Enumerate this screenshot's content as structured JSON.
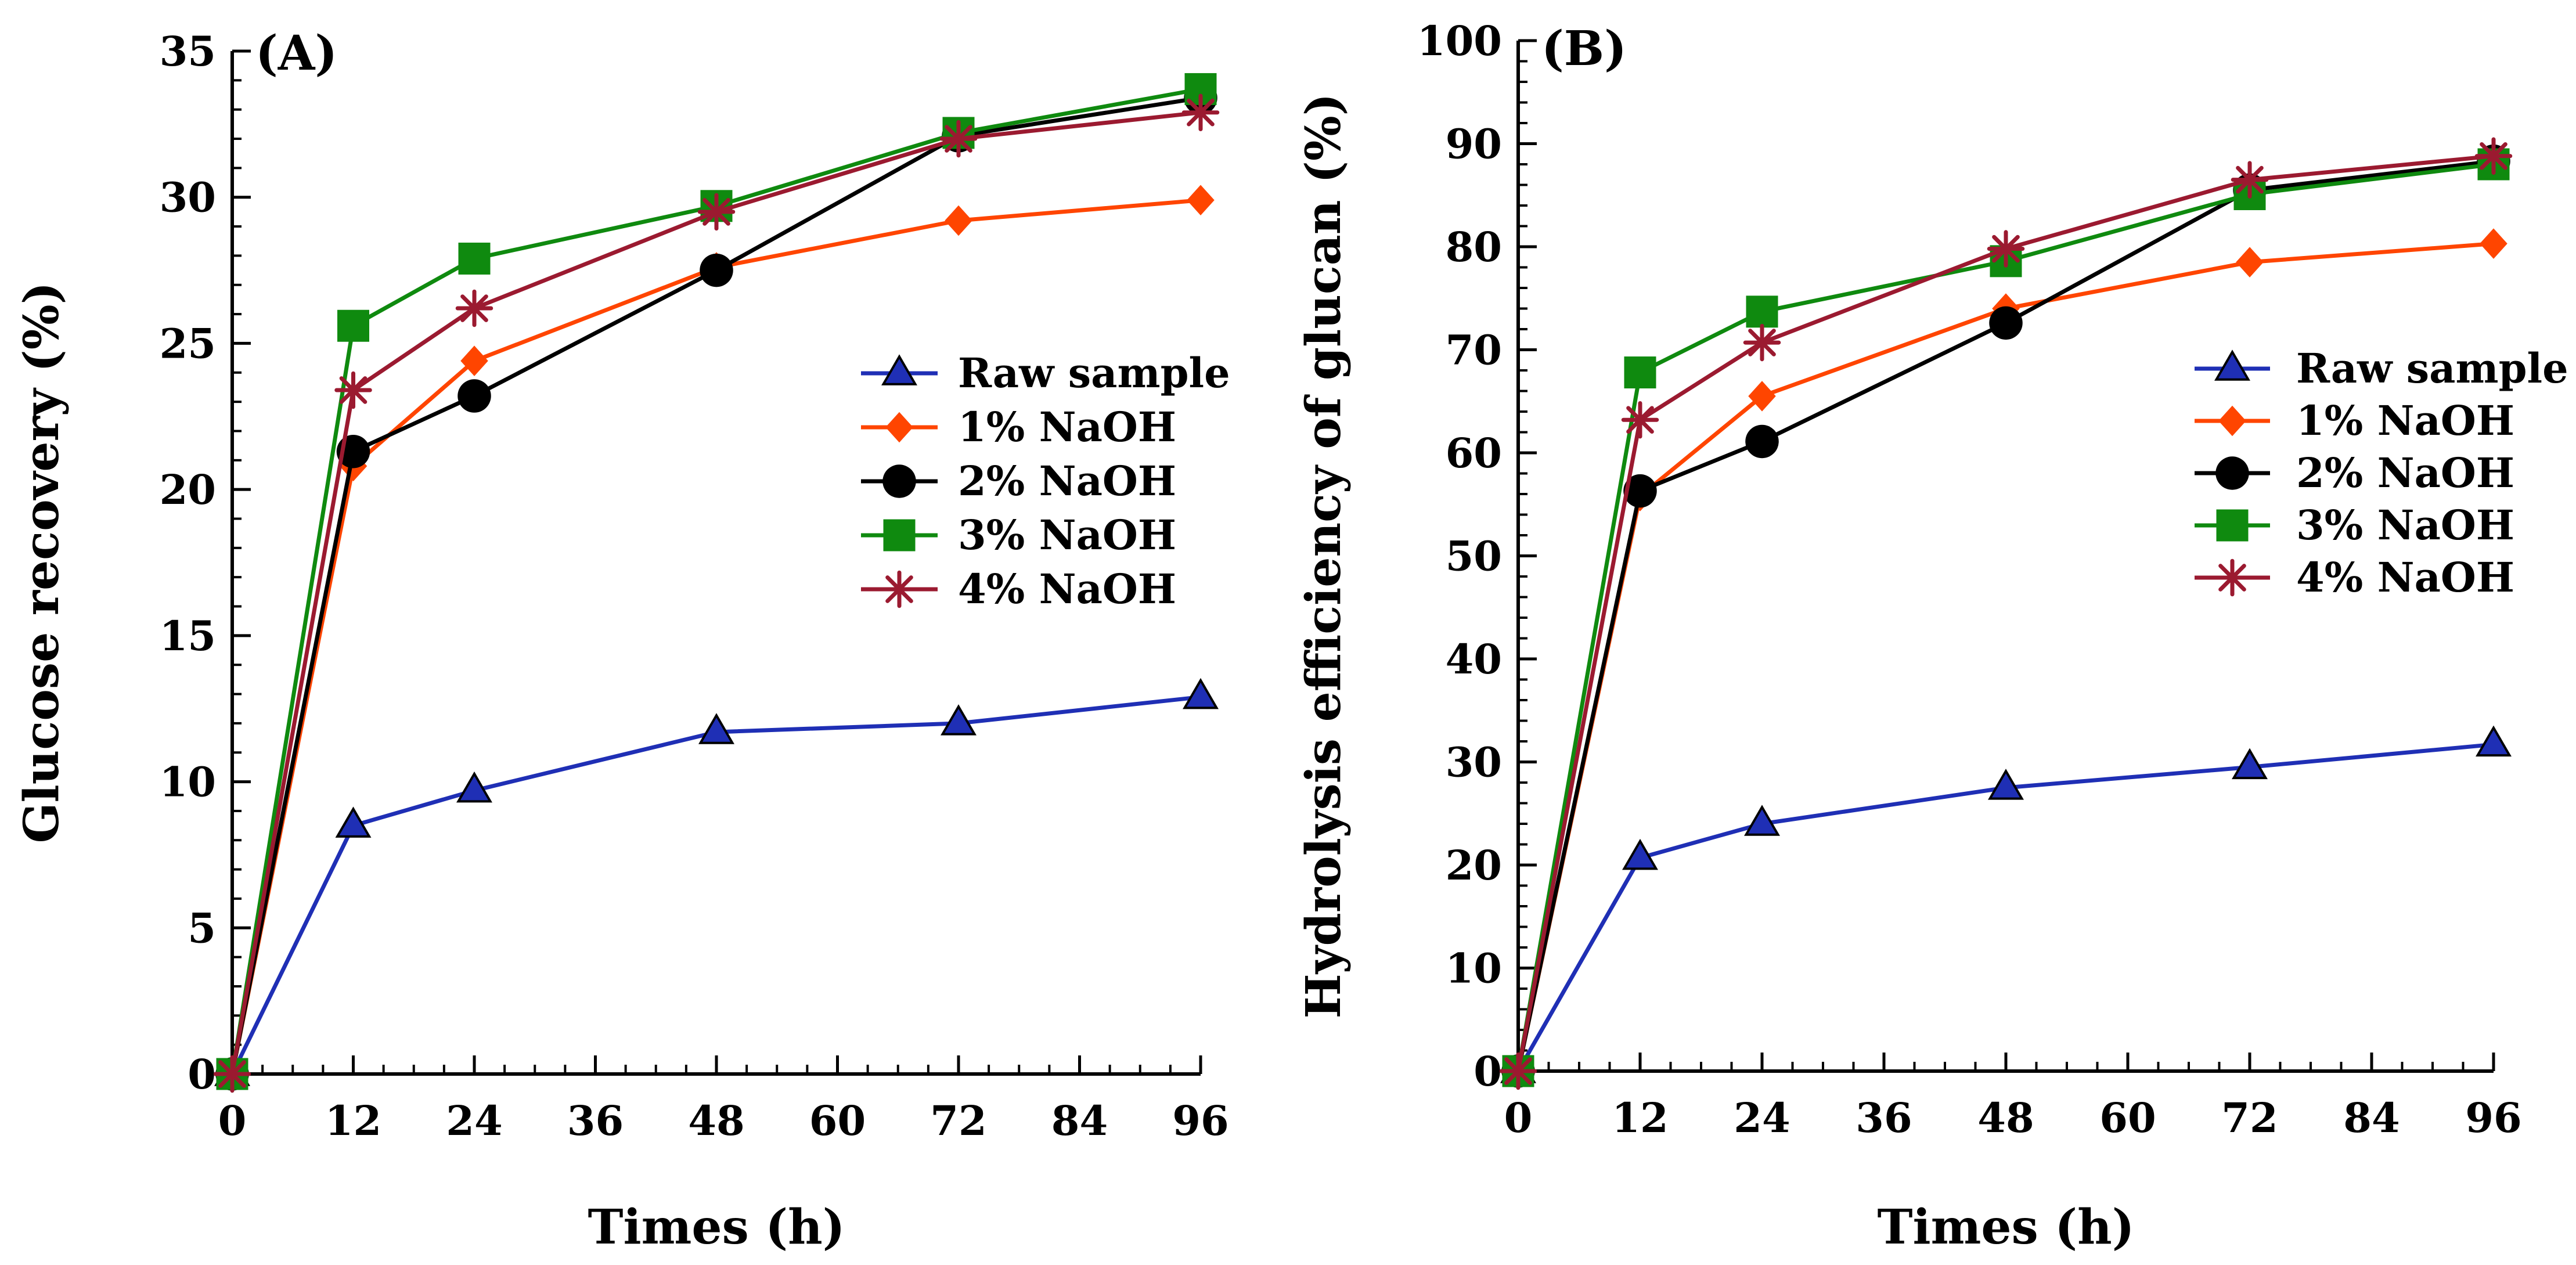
{
  "chart_data": [
    {
      "type": "line",
      "panel_label": "(A)",
      "xlabel": "Times (h)",
      "ylabel": "Glucose recovery (%)",
      "xlim": [
        0,
        96
      ],
      "ylim": [
        0,
        35
      ],
      "x_ticks": [
        0,
        12,
        24,
        36,
        48,
        60,
        72,
        84,
        96
      ],
      "x_tick_labels": [
        "0",
        "12",
        "24",
        "36",
        "48",
        "60",
        "72",
        "84",
        "96"
      ],
      "y_ticks": [
        0,
        5,
        10,
        15,
        20,
        25,
        30,
        35
      ],
      "y_tick_labels": [
        "0",
        "5",
        "10",
        "15",
        "20",
        "25",
        "30",
        "35"
      ],
      "x": [
        0,
        12,
        24,
        48,
        72,
        96
      ],
      "legend_position": "center-right",
      "grid": false,
      "series": [
        {
          "name": "Raw sample",
          "marker": "triangle",
          "color": "#1f2fb5",
          "values": [
            0,
            8.5,
            9.7,
            11.7,
            12.0,
            12.9
          ]
        },
        {
          "name": "1% NaOH",
          "marker": "diamond",
          "color": "#ff4500",
          "values": [
            0,
            20.8,
            24.4,
            27.6,
            29.2,
            29.9
          ]
        },
        {
          "name": "2% NaOH",
          "marker": "circle",
          "color": "#000000",
          "values": [
            0,
            21.3,
            23.2,
            27.5,
            32.1,
            33.4
          ]
        },
        {
          "name": "3% NaOH",
          "marker": "square",
          "color": "#0f8a0f",
          "values": [
            0,
            25.6,
            27.9,
            29.7,
            32.2,
            33.7
          ]
        },
        {
          "name": "4% NaOH",
          "marker": "star",
          "color": "#9b1a30",
          "values": [
            0,
            23.4,
            26.2,
            29.5,
            32.0,
            32.9
          ]
        }
      ]
    },
    {
      "type": "line",
      "panel_label": "(B)",
      "xlabel": "Times (h)",
      "ylabel": "Hydrolysis efficiency of glucan (%)",
      "xlim": [
        0,
        96
      ],
      "ylim": [
        0,
        100
      ],
      "x_ticks": [
        0,
        12,
        24,
        36,
        48,
        60,
        72,
        84,
        96
      ],
      "x_tick_labels": [
        "0",
        "12",
        "24",
        "36",
        "48",
        "60",
        "72",
        "84",
        "96"
      ],
      "y_ticks": [
        0,
        10,
        20,
        30,
        40,
        50,
        60,
        70,
        80,
        90,
        100
      ],
      "y_tick_labels": [
        "0",
        "10",
        "20",
        "30",
        "40",
        "50",
        "60",
        "70",
        "80",
        "90",
        "100"
      ],
      "x": [
        0,
        12,
        24,
        48,
        72,
        96
      ],
      "legend_position": "center-right",
      "grid": false,
      "series": [
        {
          "name": "Raw sample",
          "marker": "triangle",
          "color": "#1f2fb5",
          "values": [
            0,
            20.7,
            24.0,
            27.5,
            29.5,
            31.7
          ]
        },
        {
          "name": "1% NaOH",
          "marker": "diamond",
          "color": "#ff4500",
          "values": [
            0,
            55.8,
            65.5,
            74.0,
            78.5,
            80.3
          ]
        },
        {
          "name": "2% NaOH",
          "marker": "circle",
          "color": "#000000",
          "values": [
            0,
            56.3,
            61.1,
            72.6,
            85.5,
            88.3
          ]
        },
        {
          "name": "3% NaOH",
          "marker": "square",
          "color": "#0f8a0f",
          "values": [
            0,
            67.8,
            73.7,
            78.6,
            85.1,
            88.0
          ]
        },
        {
          "name": "4% NaOH",
          "marker": "star",
          "color": "#9b1a30",
          "values": [
            0,
            63.2,
            70.7,
            79.8,
            86.5,
            88.8
          ]
        }
      ]
    }
  ]
}
